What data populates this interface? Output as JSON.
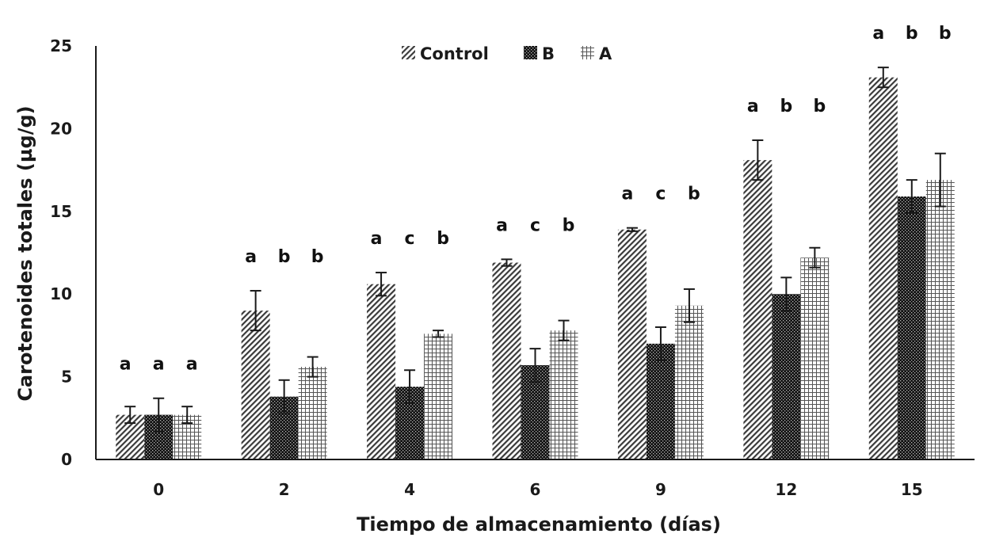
{
  "chart_data": {
    "type": "bar",
    "xlabel": "Tiempo de almacenamiento (días)",
    "ylabel": "Carotenoides totales (µg/g)",
    "categories": [
      "0",
      "2",
      "4",
      "6",
      "9",
      "12",
      "15"
    ],
    "ylim": [
      0,
      25
    ],
    "yticks": [
      0,
      5,
      10,
      15,
      20,
      25
    ],
    "grid": false,
    "legend_position": "top-center",
    "series": [
      {
        "name": "Control",
        "pattern": "diagonal-hatch",
        "color": "#3a3a3a",
        "values": [
          2.7,
          9.0,
          10.6,
          11.9,
          13.9,
          18.1,
          23.1
        ],
        "errors": [
          0.5,
          1.2,
          0.7,
          0.2,
          0.1,
          1.2,
          0.6
        ],
        "letters": [
          "a",
          "a",
          "a",
          "a",
          "a",
          "a",
          "a"
        ]
      },
      {
        "name": "B",
        "pattern": "dense-dots",
        "color": "#111111",
        "values": [
          2.7,
          3.8,
          4.4,
          5.7,
          7.0,
          10.0,
          15.9
        ],
        "errors": [
          1.0,
          1.0,
          1.0,
          1.0,
          1.0,
          1.0,
          1.0
        ],
        "letters": [
          "a",
          "b",
          "c",
          "c",
          "c",
          "b",
          "b"
        ]
      },
      {
        "name": "A",
        "pattern": "grid",
        "color": "#555555",
        "values": [
          2.7,
          5.6,
          7.6,
          7.8,
          9.3,
          12.2,
          16.9
        ],
        "errors": [
          0.5,
          0.6,
          0.2,
          0.6,
          1.0,
          0.6,
          1.6
        ],
        "letters": [
          "a",
          "b",
          "b",
          "b",
          "b",
          "b",
          "b"
        ]
      }
    ]
  }
}
